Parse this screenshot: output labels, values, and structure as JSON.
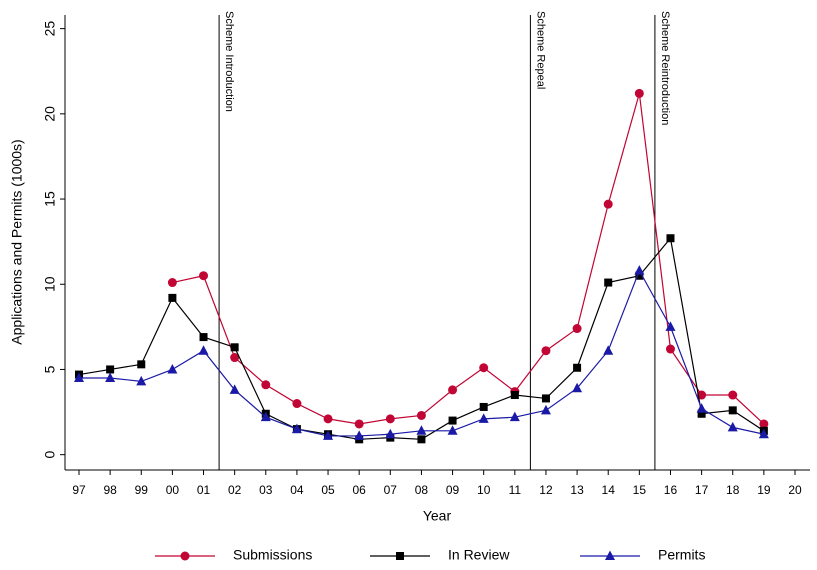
{
  "chart_data": {
    "type": "line",
    "x_label": "Year",
    "y_label": "Applications and Permits (1000s)",
    "categories": [
      "97",
      "98",
      "99",
      "00",
      "01",
      "02",
      "03",
      "04",
      "05",
      "06",
      "07",
      "08",
      "09",
      "10",
      "11",
      "12",
      "13",
      "14",
      "15",
      "16",
      "17",
      "18",
      "19",
      "20"
    ],
    "series": [
      {
        "name": "Submissions",
        "color": "#c10534",
        "marker": "circle",
        "values": [
          null,
          null,
          null,
          10.1,
          10.5,
          5.7,
          4.1,
          3.0,
          2.1,
          1.8,
          2.1,
          2.3,
          3.8,
          5.1,
          3.7,
          6.1,
          7.4,
          14.7,
          21.2,
          6.2,
          3.5,
          3.5,
          1.8,
          null
        ]
      },
      {
        "name": "In Review",
        "color": "#000000",
        "marker": "square",
        "values": [
          4.7,
          5.0,
          5.3,
          9.2,
          6.9,
          6.3,
          2.4,
          1.5,
          1.2,
          0.9,
          1.0,
          0.9,
          2.0,
          2.8,
          3.5,
          3.3,
          5.1,
          10.1,
          10.5,
          12.7,
          2.4,
          2.6,
          1.4,
          null
        ]
      },
      {
        "name": "Permits",
        "color": "#1a1aa6",
        "marker": "triangle",
        "values": [
          4.5,
          4.5,
          4.3,
          5.0,
          6.1,
          3.8,
          2.2,
          1.5,
          1.1,
          1.1,
          1.2,
          1.4,
          1.4,
          2.1,
          2.2,
          2.6,
          3.9,
          6.1,
          10.8,
          7.5,
          2.7,
          1.6,
          1.2,
          null
        ]
      }
    ],
    "annotations": [
      {
        "x": 4.5,
        "label": "Scheme Introduction"
      },
      {
        "x": 14.5,
        "label": "Scheme Repeal"
      },
      {
        "x": 18.5,
        "label": "Scheme Reintroduction"
      }
    ],
    "ylim": [
      -0.9,
      25.8
    ],
    "yticks": [
      0,
      5,
      10,
      15,
      20,
      25
    ],
    "grid": false,
    "legend": "bottom"
  }
}
